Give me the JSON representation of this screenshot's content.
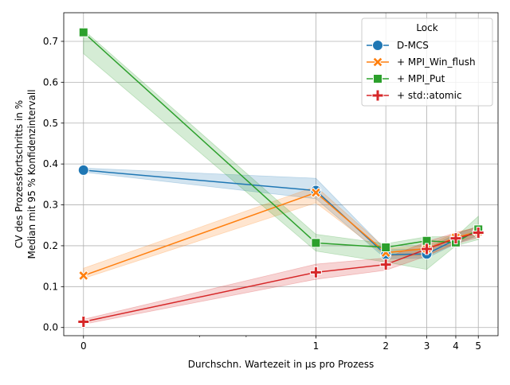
{
  "chart_data": {
    "type": "line",
    "title": "",
    "xlabel": "Durchschn. Wartezeit in µs pro Prozess",
    "ylabel_lines": [
      "CV des Prozessfortschritts in %",
      "Median mit 95 % Konfidenzintervall"
    ],
    "xscale": "symlog",
    "xticks": [
      0,
      1,
      2,
      3,
      4,
      5
    ],
    "xtick_labels": [
      "0",
      "1",
      "2",
      "3",
      "4",
      "5"
    ],
    "ylim": [
      -0.02,
      0.77
    ],
    "yticks": [
      0.0,
      0.1,
      0.2,
      0.3,
      0.4,
      0.5,
      0.6,
      0.7
    ],
    "ytick_labels": [
      "0.0",
      "0.1",
      "0.2",
      "0.3",
      "0.4",
      "0.5",
      "0.6",
      "0.7"
    ],
    "grid": true,
    "legend": {
      "title": "Lock",
      "placement": "top-right"
    },
    "series": [
      {
        "name": "D-MCS",
        "color": "#1f77b4",
        "marker": "circle",
        "x": [
          0,
          1,
          2,
          3,
          4,
          5
        ],
        "values": [
          0.385,
          0.335,
          0.178,
          0.18,
          0.215,
          0.235
        ],
        "ci_low": [
          0.38,
          0.315,
          0.168,
          0.17,
          0.205,
          0.225
        ],
        "ci_high": [
          0.39,
          0.365,
          0.19,
          0.193,
          0.228,
          0.248
        ]
      },
      {
        "name": "+ MPI_Win_flush",
        "color": "#ff7f0e",
        "marker": "x",
        "x": [
          0,
          1,
          2,
          3,
          4,
          5
        ],
        "values": [
          0.127,
          0.33,
          0.183,
          0.193,
          0.22,
          0.235
        ],
        "ci_low": [
          0.12,
          0.305,
          0.175,
          0.175,
          0.208,
          0.225
        ],
        "ci_high": [
          0.145,
          0.345,
          0.193,
          0.2,
          0.232,
          0.247
        ]
      },
      {
        "name": "+ MPI_Put",
        "color": "#2ca02c",
        "marker": "square",
        "x": [
          0,
          1,
          2,
          3,
          4,
          5
        ],
        "values": [
          0.722,
          0.207,
          0.196,
          0.212,
          0.208,
          0.24
        ],
        "ci_low": [
          0.67,
          0.187,
          0.16,
          0.142,
          0.2,
          0.215
        ],
        "ci_high": [
          0.728,
          0.228,
          0.205,
          0.222,
          0.222,
          0.272
        ]
      },
      {
        "name": "+ std::atomic",
        "color": "#d62728",
        "marker": "plus",
        "x": [
          0,
          1,
          2,
          3,
          4,
          5
        ],
        "values": [
          0.014,
          0.135,
          0.154,
          0.192,
          0.218,
          0.232
        ],
        "ci_low": [
          0.008,
          0.118,
          0.14,
          0.175,
          0.205,
          0.22
        ],
        "ci_high": [
          0.02,
          0.155,
          0.17,
          0.21,
          0.232,
          0.245
        ]
      }
    ]
  }
}
